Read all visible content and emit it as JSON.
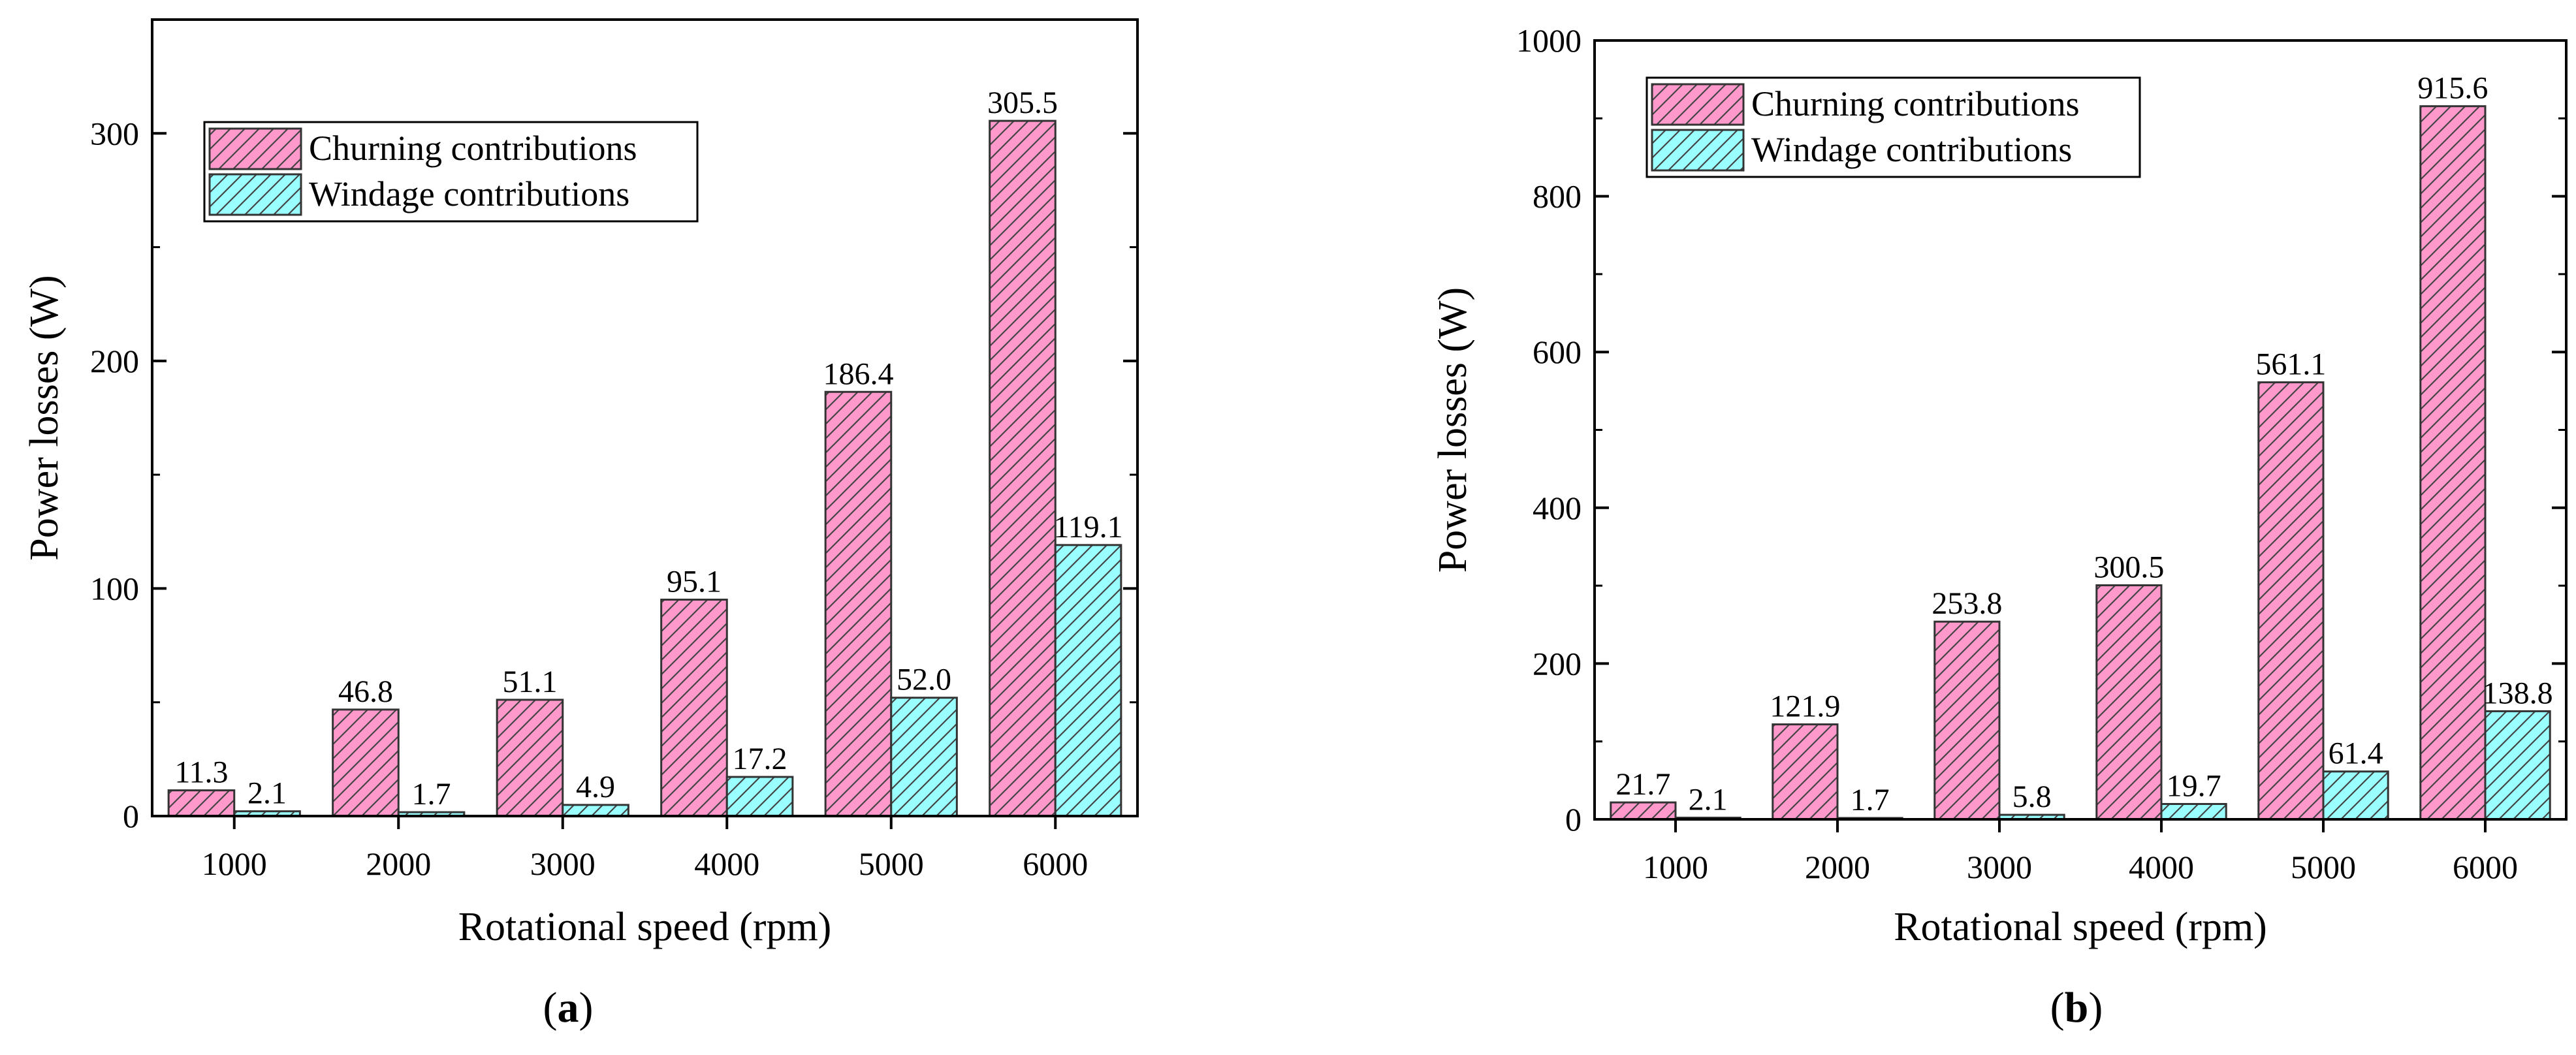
{
  "chart_data": [
    {
      "type": "bar",
      "panel_label": "(a)",
      "panel_letter": "a",
      "xlabel": "Rotational speed (rpm)",
      "ylabel": "Power losses (W)",
      "categories": [
        "1000",
        "2000",
        "3000",
        "4000",
        "5000",
        "6000"
      ],
      "ylim": [
        0,
        350
      ],
      "yticks": [
        0,
        100,
        200,
        300
      ],
      "series": [
        {
          "name": "Churning contributions",
          "values": [
            11.3,
            46.8,
            51.1,
            95.1,
            186.4,
            305.5
          ],
          "labels": [
            "11.3",
            "46.8",
            "51.1",
            "95.1",
            "186.4",
            "305.5"
          ]
        },
        {
          "name": "Windage contributions",
          "values": [
            2.1,
            1.7,
            4.9,
            17.2,
            52.0,
            119.1
          ],
          "labels": [
            "2.1",
            "1.7",
            "4.9",
            "17.2",
            "52.0",
            "119.1"
          ]
        }
      ],
      "legend_position": "top-left",
      "grid": false
    },
    {
      "type": "bar",
      "panel_label": "(b)",
      "panel_letter": "b",
      "xlabel": "Rotational speed (rpm)",
      "ylabel": "Power losses (W)",
      "categories": [
        "1000",
        "2000",
        "3000",
        "4000",
        "5000",
        "6000"
      ],
      "ylim": [
        0,
        1000
      ],
      "yticks": [
        0,
        200,
        400,
        600,
        800,
        1000
      ],
      "series": [
        {
          "name": "Churning contributions",
          "values": [
            21.7,
            121.9,
            253.8,
            300.5,
            561.1,
            915.6
          ],
          "labels": [
            "21.7",
            "121.9",
            "253.8",
            "300.5",
            "561.1",
            "915.6"
          ]
        },
        {
          "name": "Windage contributions",
          "values": [
            2.1,
            1.7,
            5.8,
            19.7,
            61.4,
            138.8
          ],
          "labels": [
            "2.1",
            "1.7",
            "5.8",
            "19.7",
            "61.4",
            "138.8"
          ]
        }
      ],
      "legend_position": "top-left",
      "grid": false
    }
  ],
  "colors": {
    "churning_fill": "#ff99cc",
    "windage_fill": "#99ffff",
    "bar_stroke": "#333333",
    "axis": "#000000"
  }
}
